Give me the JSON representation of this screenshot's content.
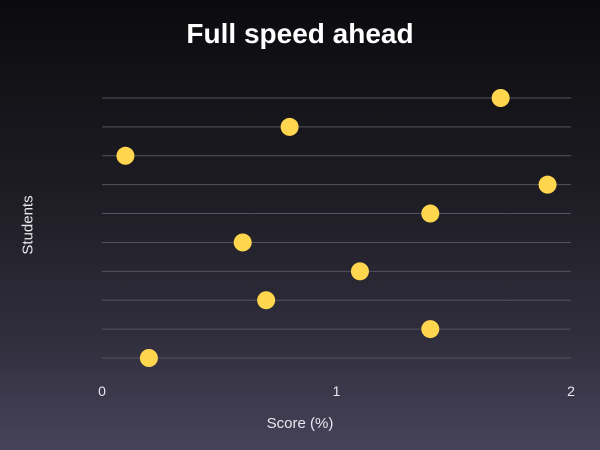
{
  "chart_data": {
    "type": "scatter",
    "title": "Full speed ahead",
    "xlabel": "Score (%)",
    "ylabel": "Students",
    "xlim": [
      0,
      2
    ],
    "x_ticks": [
      "0",
      "1",
      "2"
    ],
    "y_categories": 10,
    "grid": "horizontal",
    "point_color": "#ffd64d",
    "points": [
      {
        "x": 0.2,
        "y": 1
      },
      {
        "x": 1.4,
        "y": 2
      },
      {
        "x": 0.7,
        "y": 3
      },
      {
        "x": 1.1,
        "y": 4
      },
      {
        "x": 0.6,
        "y": 5
      },
      {
        "x": 1.4,
        "y": 6
      },
      {
        "x": 1.9,
        "y": 7
      },
      {
        "x": 0.1,
        "y": 8
      },
      {
        "x": 0.8,
        "y": 9
      },
      {
        "x": 1.7,
        "y": 10
      }
    ]
  }
}
